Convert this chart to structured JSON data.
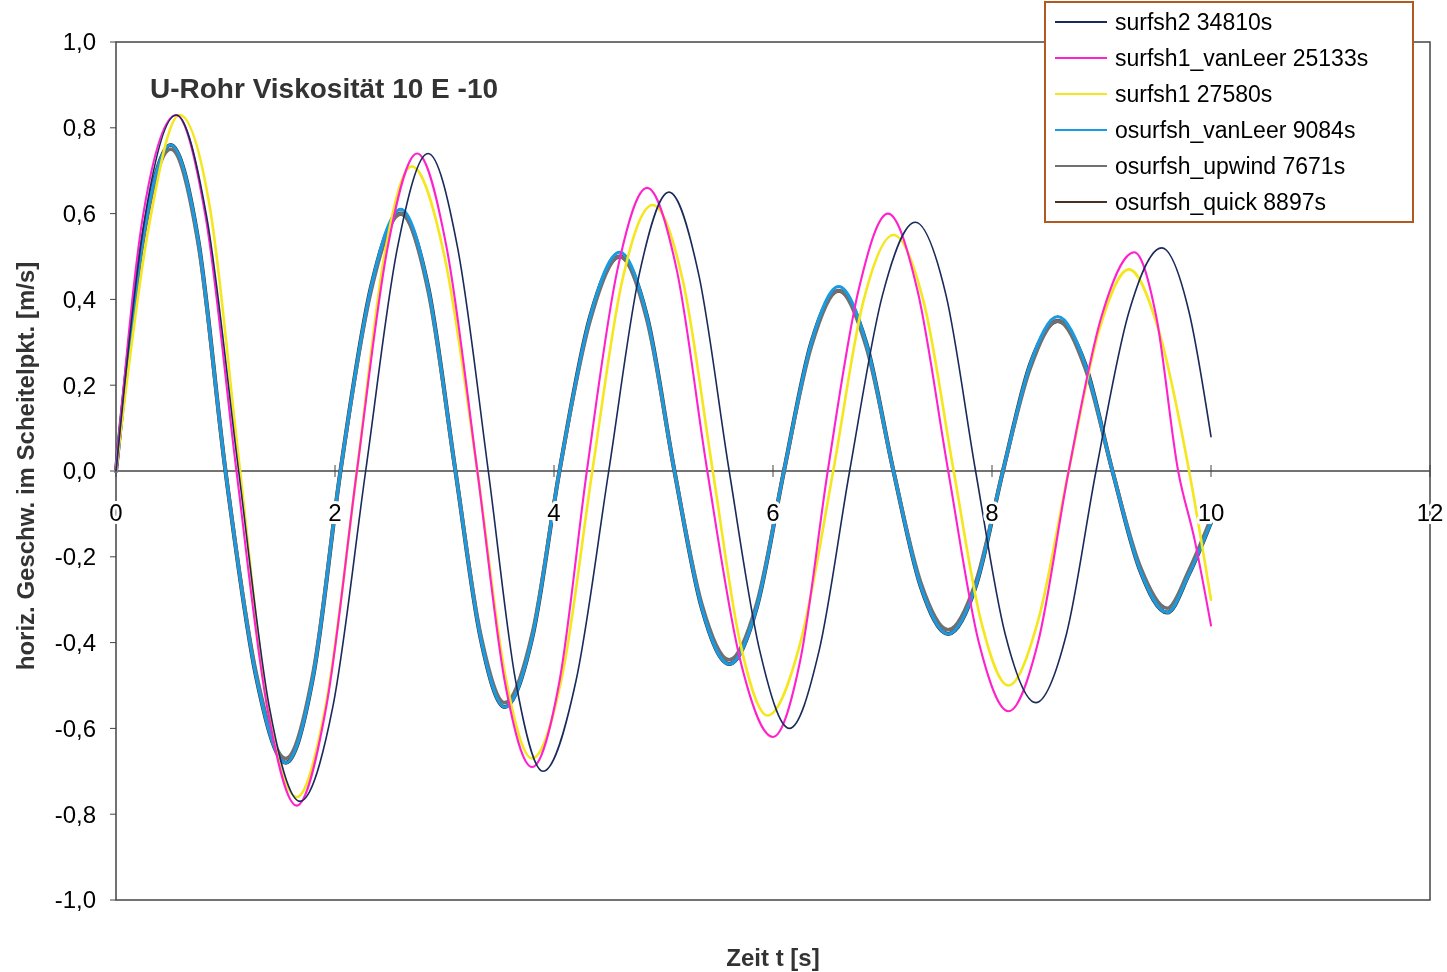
{
  "chart_data": {
    "type": "line",
    "title": "U-Rohr Viskosität 10 E -10",
    "xlabel": "Zeit t [s]",
    "ylabel": "horiz. Geschw. im Scheitelpkt. [m/s]",
    "xlim": [
      0,
      12
    ],
    "xticks": [
      0,
      2,
      4,
      6,
      8,
      10,
      12
    ],
    "ylim": [
      -1,
      1
    ],
    "yticks": [
      {
        "value": -1,
        "label": "-1,0"
      },
      {
        "value": -0.8,
        "label": "-0,8"
      },
      {
        "value": -0.6,
        "label": "-0,6"
      },
      {
        "value": -0.4,
        "label": "-0,4"
      },
      {
        "value": -0.2,
        "label": "-0,2"
      },
      {
        "value": 0,
        "label": "0,0"
      },
      {
        "value": 0.2,
        "label": "0,2"
      },
      {
        "value": 0.4,
        "label": "0,4"
      },
      {
        "value": 0.6,
        "label": "0,6"
      },
      {
        "value": 0.8,
        "label": "0,8"
      },
      {
        "value": 1,
        "label": "1,0"
      }
    ],
    "grid": false,
    "legend": "top right",
    "marker": "none",
    "line_style": "solid",
    "series": [
      {
        "name": "surfsh2 34810s",
        "color": "#1a2a5a",
        "x": [
          0,
          0.27,
          0.55,
          0.83,
          1.12,
          1.4,
          1.68,
          1.98,
          2.28,
          2.57,
          2.85,
          3.12,
          3.4,
          3.65,
          3.9,
          4.2,
          4.5,
          4.78,
          5.05,
          5.32,
          5.6,
          5.88,
          6.15,
          6.42,
          6.7,
          7.0,
          7.3,
          7.58,
          7.85,
          8.12,
          8.4,
          8.68,
          8.95,
          9.25,
          9.55,
          9.8,
          10
        ],
        "values": [
          0,
          0.6,
          0.83,
          0.59,
          0,
          -0.55,
          -0.77,
          -0.55,
          0,
          0.52,
          0.74,
          0.52,
          0,
          -0.49,
          -0.7,
          -0.49,
          0,
          0.46,
          0.65,
          0.46,
          0,
          -0.42,
          -0.6,
          -0.42,
          0,
          0.41,
          0.58,
          0.41,
          0,
          -0.38,
          -0.54,
          -0.38,
          0,
          0.37,
          0.52,
          0.37,
          0.08
        ]
      },
      {
        "name": "surfsh1_vanLeer 25133s",
        "color": "#ff22cc",
        "x": [
          0,
          0.25,
          0.55,
          0.82,
          1.1,
          1.38,
          1.65,
          1.92,
          2.2,
          2.48,
          2.75,
          3.02,
          3.3,
          3.55,
          3.8,
          4.05,
          4.3,
          4.58,
          4.85,
          5.12,
          5.4,
          5.7,
          6.0,
          6.25,
          6.5,
          6.78,
          7.05,
          7.32,
          7.6,
          7.88,
          8.15,
          8.42,
          8.7,
          9.0,
          9.3,
          9.5,
          9.7,
          9.85,
          10
        ],
        "values": [
          0,
          0.6,
          0.83,
          0.59,
          0,
          -0.55,
          -0.78,
          -0.55,
          0,
          0.52,
          0.74,
          0.52,
          0,
          -0.49,
          -0.69,
          -0.49,
          0,
          0.47,
          0.66,
          0.47,
          0,
          -0.44,
          -0.62,
          -0.44,
          0,
          0.42,
          0.6,
          0.42,
          0,
          -0.4,
          -0.56,
          -0.4,
          0,
          0.36,
          0.51,
          0.36,
          0,
          -0.16,
          -0.36
        ]
      },
      {
        "name": "surfsh1 27580s",
        "color": "#f5e61e",
        "x": [
          0,
          0.3,
          0.58,
          0.86,
          1.12,
          1.38,
          1.65,
          1.92,
          2.2,
          2.45,
          2.7,
          3.0,
          3.3,
          3.55,
          3.8,
          4.08,
          4.35,
          4.62,
          4.9,
          5.18,
          5.45,
          5.7,
          5.95,
          6.25,
          6.55,
          6.82,
          7.1,
          7.38,
          7.65,
          7.9,
          8.15,
          8.42,
          8.7,
          8.98,
          9.25,
          9.52,
          9.8,
          10
        ],
        "values": [
          0,
          0.57,
          0.83,
          0.61,
          0.03,
          -0.54,
          -0.76,
          -0.54,
          0,
          0.5,
          0.71,
          0.5,
          0,
          -0.47,
          -0.67,
          -0.47,
          0,
          0.44,
          0.62,
          0.44,
          0,
          -0.4,
          -0.57,
          -0.4,
          0,
          0.39,
          0.55,
          0.39,
          0,
          -0.35,
          -0.5,
          -0.35,
          0,
          0.33,
          0.47,
          0.33,
          0,
          -0.3
        ]
      },
      {
        "name": "osurfsh_vanLeer 9084s",
        "color": "#1a9ae0",
        "x": [
          0,
          0.25,
          0.5,
          0.75,
          1.0,
          1.28,
          1.55,
          1.8,
          2.05,
          2.33,
          2.6,
          2.85,
          3.1,
          3.33,
          3.55,
          3.8,
          4.05,
          4.33,
          4.6,
          4.85,
          5.1,
          5.35,
          5.6,
          5.85,
          6.1,
          6.35,
          6.6,
          6.85,
          7.1,
          7.35,
          7.6,
          7.85,
          8.1,
          8.35,
          8.6,
          8.85,
          9.1,
          9.35,
          9.6,
          9.8,
          10
        ],
        "values": [
          0,
          0.55,
          0.76,
          0.54,
          0,
          -0.48,
          -0.68,
          -0.48,
          0,
          0.43,
          0.61,
          0.43,
          0,
          -0.39,
          -0.55,
          -0.39,
          0,
          0.36,
          0.51,
          0.36,
          0,
          -0.32,
          -0.45,
          -0.32,
          0,
          0.3,
          0.43,
          0.3,
          0,
          -0.27,
          -0.38,
          -0.27,
          0,
          0.25,
          0.36,
          0.25,
          0,
          -0.23,
          -0.33,
          -0.24,
          -0.12
        ]
      },
      {
        "name": "osurfsh_upwind 7671s",
        "color": "#707070",
        "x": [
          0,
          0.25,
          0.5,
          0.75,
          1.0,
          1.28,
          1.55,
          1.8,
          2.05,
          2.33,
          2.6,
          2.85,
          3.1,
          3.33,
          3.55,
          3.8,
          4.05,
          4.33,
          4.6,
          4.85,
          5.1,
          5.35,
          5.6,
          5.85,
          6.1,
          6.35,
          6.6,
          6.85,
          7.1,
          7.35,
          7.6,
          7.85,
          8.1,
          8.35,
          8.6,
          8.85,
          9.1,
          9.35,
          9.6,
          9.8,
          10
        ],
        "values": [
          0,
          0.54,
          0.75,
          0.53,
          0,
          -0.47,
          -0.67,
          -0.47,
          0,
          0.42,
          0.6,
          0.42,
          0,
          -0.38,
          -0.54,
          -0.38,
          0,
          0.35,
          0.5,
          0.35,
          0,
          -0.31,
          -0.44,
          -0.31,
          0,
          0.29,
          0.42,
          0.29,
          0,
          -0.26,
          -0.37,
          -0.26,
          0,
          0.24,
          0.35,
          0.24,
          0,
          -0.22,
          -0.32,
          -0.23,
          -0.11
        ]
      },
      {
        "name": "osurfsh_quick 8897s",
        "color": "#4a3020",
        "x": [
          0,
          0.25,
          0.5,
          0.75,
          1.0,
          1.28,
          1.55,
          1.8,
          2.05,
          2.33,
          2.6,
          2.85,
          3.1,
          3.33,
          3.55,
          3.8,
          4.05,
          4.33,
          4.6,
          4.85,
          5.1,
          5.35,
          5.6,
          5.85,
          6.1,
          6.35,
          6.6,
          6.85,
          7.1,
          7.35,
          7.6,
          7.85,
          8.1,
          8.35,
          8.6,
          8.85,
          9.1,
          9.35,
          9.6,
          9.8,
          10
        ],
        "values": [
          0,
          0.55,
          0.76,
          0.54,
          0,
          -0.48,
          -0.68,
          -0.48,
          0,
          0.43,
          0.6,
          0.43,
          0,
          -0.39,
          -0.55,
          -0.39,
          0,
          0.36,
          0.5,
          0.36,
          0,
          -0.32,
          -0.45,
          -0.32,
          0,
          0.3,
          0.42,
          0.3,
          0,
          -0.27,
          -0.38,
          -0.27,
          0,
          0.25,
          0.35,
          0.25,
          0,
          -0.23,
          -0.33,
          -0.24,
          -0.12
        ]
      }
    ]
  }
}
